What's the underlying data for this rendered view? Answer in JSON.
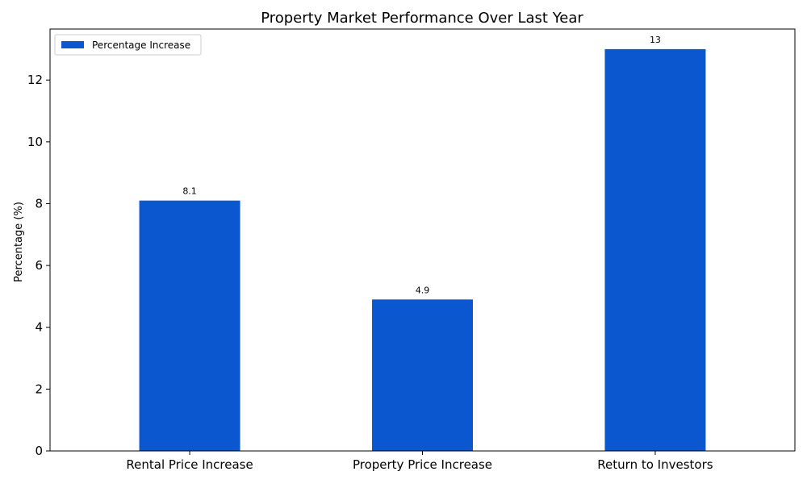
{
  "chart_data": {
    "type": "bar",
    "title": "Property Market Performance Over Last Year",
    "xlabel": "",
    "ylabel": "Percentage (%)",
    "categories": [
      "Rental Price Increase",
      "Property Price Increase",
      "Return to Investors"
    ],
    "series": [
      {
        "name": "Percentage Increase",
        "values": [
          8.1,
          4.9,
          13
        ],
        "data_labels": [
          "8.1",
          "4.9",
          "13"
        ],
        "color": "#0b57d0"
      }
    ],
    "ylim": [
      0,
      13.65
    ],
    "yticks": [
      0,
      2,
      4,
      6,
      8,
      10,
      12
    ],
    "ytick_labels": [
      "0",
      "2",
      "4",
      "6",
      "8",
      "10",
      "12"
    ],
    "grid": false,
    "legend_position": "top-left"
  }
}
